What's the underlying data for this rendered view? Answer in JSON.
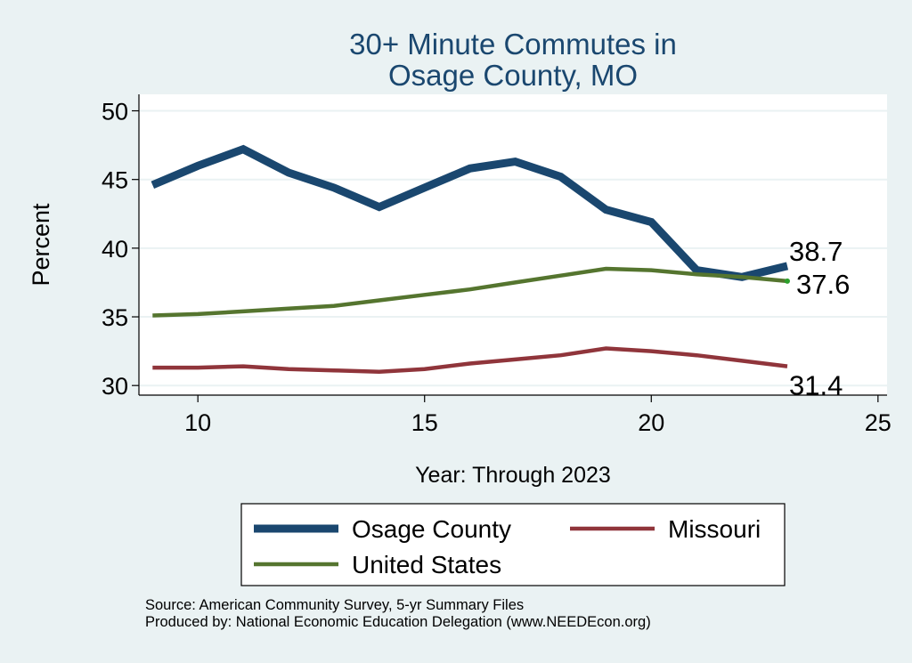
{
  "chart_data": {
    "type": "line",
    "title": [
      "30+ Minute Commutes in",
      "Osage County, MO"
    ],
    "xlabel": "Year: Through 2023",
    "ylabel": "Percent",
    "xlim": [
      8.7,
      25.2
    ],
    "ylim": [
      29.3,
      51.2
    ],
    "xticks": [
      10,
      15,
      20,
      25
    ],
    "yticks": [
      30,
      35,
      40,
      45,
      50
    ],
    "grid": true,
    "x": [
      9,
      10,
      11,
      12,
      13,
      14,
      15,
      16,
      17,
      18,
      19,
      20,
      21,
      22,
      23
    ],
    "series": [
      {
        "name": "Osage County",
        "color": "#1a476f",
        "values": [
          44.6,
          46.0,
          47.2,
          45.5,
          44.4,
          43.0,
          44.4,
          45.8,
          46.3,
          45.2,
          42.8,
          41.9,
          38.4,
          37.9,
          38.7
        ],
        "end_label": "38.7"
      },
      {
        "name": "Missouri",
        "color": "#90353b",
        "values": [
          31.3,
          31.3,
          31.4,
          31.2,
          31.1,
          31.0,
          31.2,
          31.6,
          31.9,
          32.2,
          32.7,
          32.5,
          32.2,
          31.8,
          31.4
        ],
        "end_label": "31.4"
      },
      {
        "name": "United States",
        "color": "#55752f",
        "values": [
          35.1,
          35.2,
          35.4,
          35.6,
          35.8,
          36.2,
          36.6,
          37.0,
          37.5,
          38.0,
          38.5,
          38.4,
          38.1,
          37.9,
          37.6
        ],
        "end_label": "37.6"
      }
    ],
    "legend": {
      "placement": "bottom",
      "order": [
        "Osage County",
        "Missouri",
        "United States"
      ]
    }
  },
  "footer": {
    "source": "Source: American Community Survey, 5-yr Summary Files",
    "produced": "Produced by: National Economic Education Delegation (www.NEEDEcon.org)"
  }
}
